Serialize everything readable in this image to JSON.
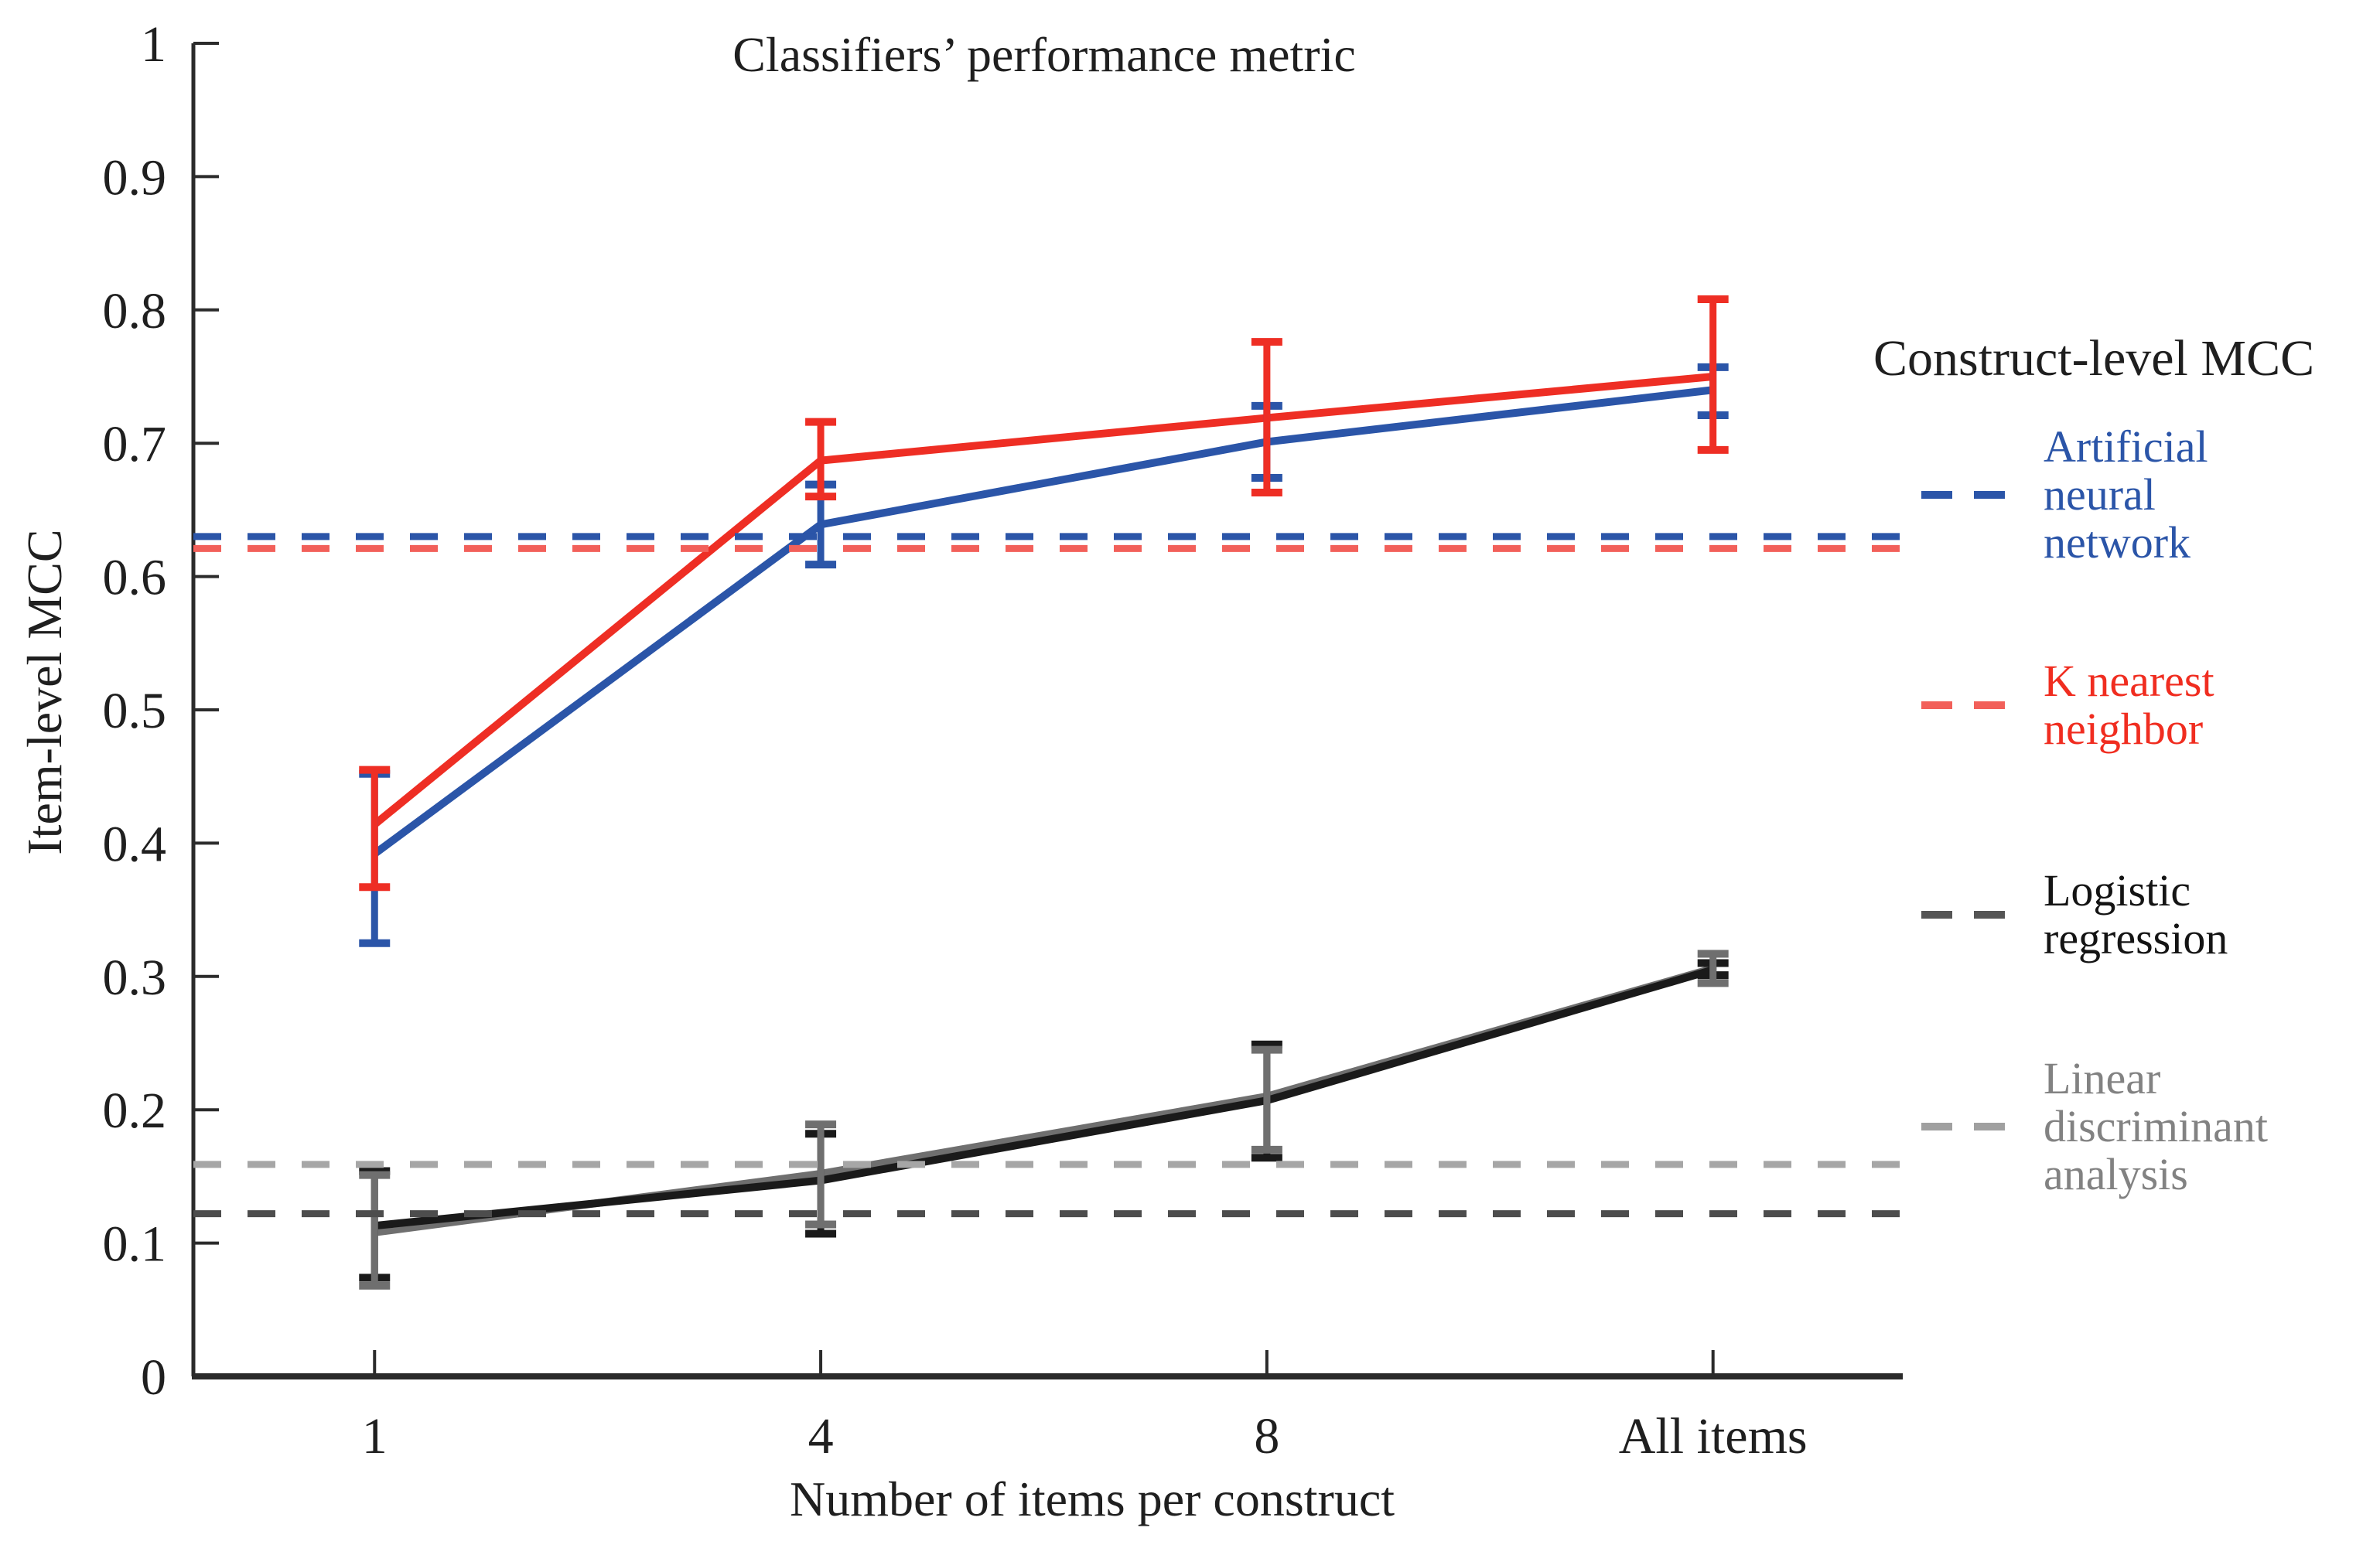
{
  "chart_data": {
    "type": "line",
    "title": "Classifiers’ performance metric",
    "xlabel": "Number of items per construct",
    "ylabel": "Item-level MCC",
    "categories": [
      "1",
      "4",
      "8",
      "All items"
    ],
    "ylim": [
      0,
      1
    ],
    "ytick_step": 0.1,
    "grid": false,
    "legend_position": "right",
    "series": [
      {
        "name": "Artificial neural network",
        "color": "#2b55a8",
        "values": [
          0.392,
          0.639,
          0.701,
          0.74
        ],
        "err_lo": [
          0.325,
          0.609,
          0.674,
          0.721
        ],
        "err_hi": [
          0.452,
          0.669,
          0.728,
          0.757
        ],
        "construct_level_mcc": 0.63,
        "construct_dash_color": "#2b55a8"
      },
      {
        "name": "K nearest neighbor",
        "color": "#ee2e24",
        "values": [
          0.414,
          0.687,
          0.719,
          0.75
        ],
        "err_lo": [
          0.367,
          0.66,
          0.663,
          0.695
        ],
        "err_hi": [
          0.455,
          0.716,
          0.776,
          0.808
        ],
        "construct_level_mcc": 0.621,
        "construct_dash_color": "#f2605a"
      },
      {
        "name": "Logistic regression",
        "color": "#1a1a1a",
        "values": [
          0.113,
          0.147,
          0.207,
          0.305
        ],
        "err_lo": [
          0.074,
          0.107,
          0.164,
          0.301
        ],
        "err_hi": [
          0.154,
          0.182,
          0.249,
          0.31
        ],
        "construct_level_mcc": 0.122,
        "construct_dash_color": "#4d4d4d"
      },
      {
        "name": "Linear discriminant analysis",
        "color": "#6f6f6f",
        "values": [
          0.108,
          0.152,
          0.21,
          0.306
        ],
        "err_lo": [
          0.068,
          0.114,
          0.17,
          0.295
        ],
        "err_hi": [
          0.151,
          0.189,
          0.245,
          0.317
        ],
        "construct_level_mcc": 0.159,
        "construct_dash_color": "#a6a6a6"
      }
    ]
  },
  "legend": {
    "title": "Construct-level MCC",
    "items": [
      {
        "label": "Artificial\nneural\nnetwork",
        "color": "#2b55a8",
        "dash_color": "#2b55a8"
      },
      {
        "label": "K nearest\nneighbor",
        "color": "#f02d20",
        "dash_color": "#f2605a"
      },
      {
        "label": "Logistic\nregression",
        "color": "#141414",
        "dash_color": "#555555"
      },
      {
        "label": "Linear\ndiscriminant\nanalysis",
        "color": "#828282",
        "dash_color": "#a0a0a0"
      }
    ]
  }
}
